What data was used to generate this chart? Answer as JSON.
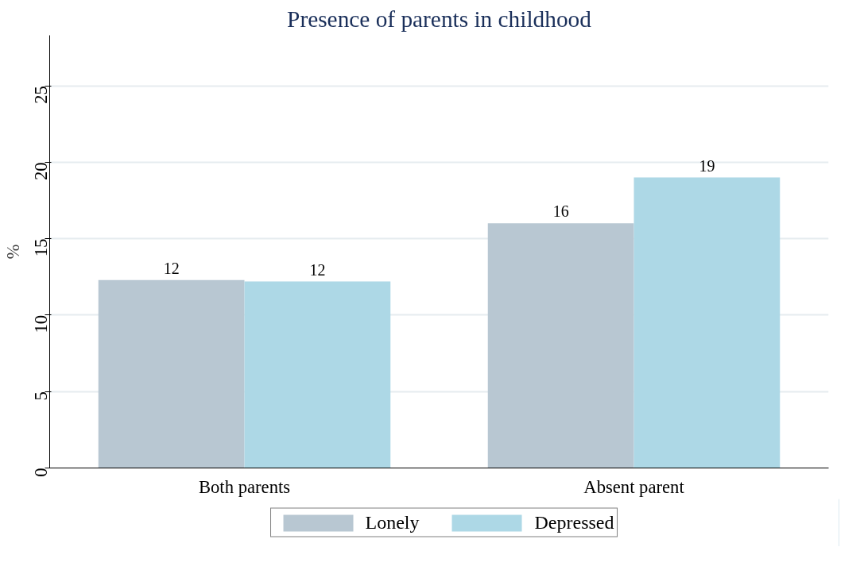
{
  "chart_data": {
    "type": "bar",
    "title": "Presence of parents in childhood",
    "ylabel": "%",
    "categories": [
      "Both parents",
      "Absent parent"
    ],
    "series": [
      {
        "name": "Lonely",
        "color": "#b8c7d2",
        "values": [
          12.3,
          16
        ],
        "value_labels": [
          "12",
          "16"
        ]
      },
      {
        "name": "Depressed",
        "color": "#add8e6",
        "values": [
          12.2,
          19
        ],
        "value_labels": [
          "12",
          "19"
        ]
      }
    ],
    "ylim": [
      0,
      28.3
    ],
    "yticks": [
      0,
      5,
      10,
      15,
      20,
      25
    ],
    "grid": "y",
    "legend": "bottom"
  }
}
